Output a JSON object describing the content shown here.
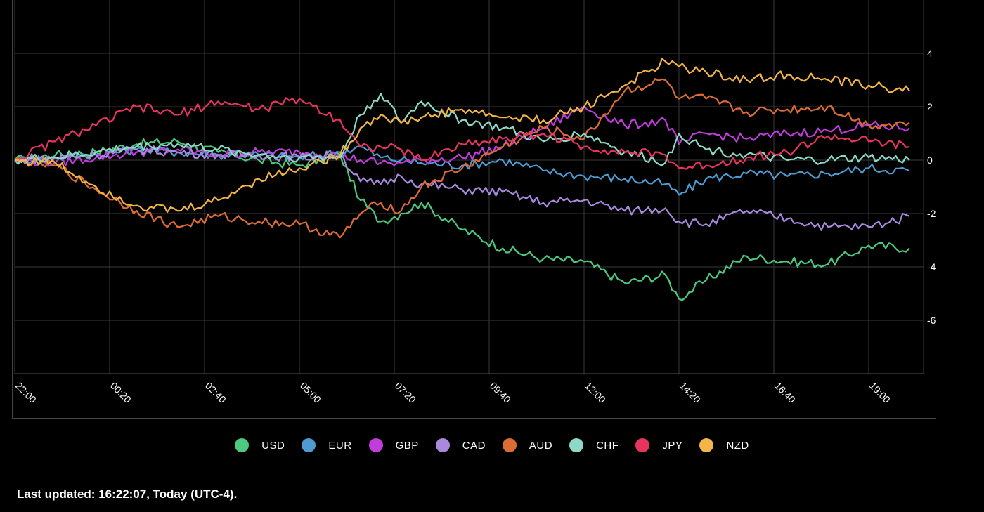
{
  "chart_data": {
    "type": "line",
    "ylim": [
      -8,
      6
    ],
    "yticks": [
      4,
      2,
      0,
      -2,
      -4,
      -6
    ],
    "xticks": [
      "22:00",
      "00:20",
      "02:40",
      "05:00",
      "07:20",
      "09:40",
      "12:00",
      "14:20",
      "16:40",
      "19:00"
    ],
    "x": [
      "22:00",
      "23:00",
      "00:00",
      "01:00",
      "02:00",
      "03:00",
      "04:00",
      "05:00",
      "06:00",
      "06:30",
      "07:00",
      "07:30",
      "08:00",
      "09:00",
      "10:00",
      "11:00",
      "12:00",
      "13:00",
      "14:00",
      "14:20",
      "15:00",
      "16:00",
      "17:00",
      "18:00",
      "19:00",
      "20:00"
    ],
    "grid": true,
    "series": [
      {
        "name": "USD",
        "color": "#4cc97e",
        "values": [
          0,
          0.2,
          0.3,
          0.6,
          0.7,
          0.3,
          0.0,
          -0.2,
          0.2,
          -1.5,
          -2.3,
          -2.0,
          -1.6,
          -2.6,
          -3.3,
          -3.7,
          -3.8,
          -4.6,
          -4.3,
          -5.2,
          -4.5,
          -3.6,
          -3.8,
          -3.9,
          -3.2,
          -3.3
        ]
      },
      {
        "name": "EUR",
        "color": "#4e9bd1",
        "values": [
          0,
          0.1,
          0.2,
          0.4,
          0.3,
          0.2,
          0.2,
          0.1,
          0.3,
          0.5,
          0.1,
          0.0,
          -0.1,
          -0.2,
          0.0,
          -0.4,
          -0.6,
          -0.7,
          -0.9,
          -1.3,
          -0.7,
          -0.5,
          -0.6,
          -0.5,
          -0.3,
          -0.4
        ]
      },
      {
        "name": "GBP",
        "color": "#c03ddb",
        "values": [
          0,
          -0.1,
          0.1,
          0.3,
          0.4,
          0.2,
          0.3,
          0.3,
          0.2,
          0.0,
          -0.1,
          -0.1,
          0.0,
          0.1,
          0.5,
          1.2,
          2.0,
          1.3,
          1.5,
          0.6,
          1.0,
          0.8,
          1.0,
          1.1,
          1.3,
          1.2
        ]
      },
      {
        "name": "CAD",
        "color": "#a989dd",
        "values": [
          0,
          0.1,
          0.2,
          0.4,
          0.3,
          0.2,
          0.2,
          0.1,
          0.2,
          -0.8,
          -0.9,
          -0.6,
          -0.9,
          -1.1,
          -1.2,
          -1.6,
          -1.5,
          -1.9,
          -1.8,
          -2.3,
          -2.4,
          -1.9,
          -2.2,
          -2.5,
          -2.5,
          -2.1
        ]
      },
      {
        "name": "AUD",
        "color": "#dc6c36",
        "values": [
          0,
          -0.2,
          -1.1,
          -1.9,
          -2.5,
          -2.1,
          -2.3,
          -2.4,
          -2.9,
          -2.0,
          -1.6,
          -1.9,
          -1.0,
          -0.3,
          0.5,
          1.2,
          0.8,
          2.6,
          3.0,
          2.3,
          2.3,
          1.8,
          1.9,
          2.0,
          1.3,
          1.4
        ]
      },
      {
        "name": "CHF",
        "color": "#8dd9c7",
        "values": [
          0,
          0.1,
          0.3,
          0.5,
          0.6,
          0.4,
          0.2,
          0.1,
          0.1,
          1.7,
          2.5,
          1.4,
          2.2,
          1.5,
          1.2,
          0.7,
          1.0,
          0.3,
          -0.1,
          1.0,
          0.4,
          0.2,
          0.0,
          0.0,
          0.1,
          0.0
        ]
      },
      {
        "name": "JPY",
        "color": "#e7345d",
        "values": [
          0,
          0.7,
          1.3,
          2.0,
          1.7,
          2.2,
          1.9,
          2.3,
          1.5,
          0.5,
          0.5,
          0.4,
          0.0,
          0.6,
          0.8,
          1.0,
          0.5,
          0.3,
          0.2,
          -0.3,
          -0.2,
          0.1,
          0.3,
          0.9,
          0.7,
          0.5
        ]
      },
      {
        "name": "NZD",
        "color": "#f3b548",
        "values": [
          0,
          -0.1,
          -1.0,
          -1.7,
          -1.9,
          -1.5,
          -0.7,
          -0.3,
          0.2,
          1.2,
          1.7,
          1.4,
          1.6,
          1.9,
          1.6,
          1.5,
          2.0,
          2.8,
          3.7,
          3.5,
          3.3,
          3.0,
          3.2,
          3.0,
          2.8,
          2.6
        ]
      }
    ]
  },
  "legend": {
    "items": [
      "USD",
      "EUR",
      "GBP",
      "CAD",
      "AUD",
      "CHF",
      "JPY",
      "NZD"
    ]
  },
  "footer": {
    "text": "Last updated: 16:22:07, Today (UTC-4)."
  }
}
